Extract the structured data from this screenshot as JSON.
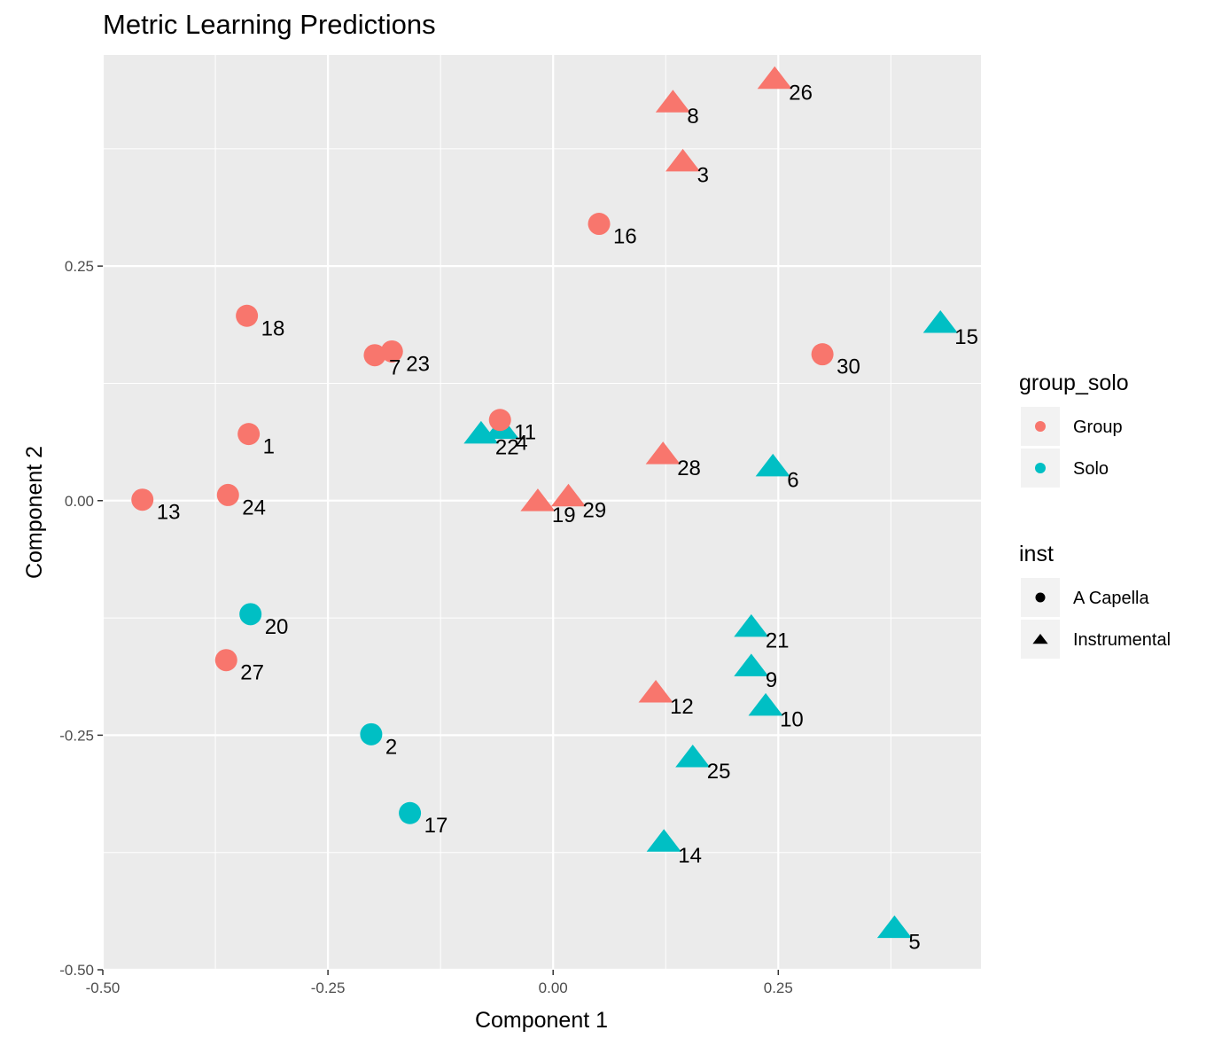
{
  "chart_data": {
    "type": "scatter",
    "title": "Metric Learning Predictions",
    "xlabel": "Component 1",
    "ylabel": "Component 2",
    "xlim": [
      -0.5,
      0.475
    ],
    "ylim": [
      -0.5,
      0.475
    ],
    "x_ticks": [
      -0.5,
      -0.25,
      0.0,
      0.25
    ],
    "x_tick_labels": [
      "-0.50",
      "-0.25",
      "0.00",
      "0.25"
    ],
    "y_ticks": [
      -0.5,
      -0.25,
      0.0,
      0.25
    ],
    "y_tick_labels": [
      "-0.50",
      "-0.25",
      "0.00",
      "0.25"
    ],
    "grid": true,
    "legend_position": "right",
    "colors": {
      "Group": "#F8766D",
      "Solo": "#00BFC4",
      "panel": "#EBEBEB",
      "grid": "#FFFFFF"
    },
    "legends": [
      {
        "title": "group_solo",
        "entries": [
          "Group",
          "Solo"
        ]
      },
      {
        "title": "inst",
        "entries": [
          "A Capella",
          "Instrumental"
        ]
      }
    ],
    "points": [
      {
        "label": "1",
        "x": -0.338,
        "y": 0.071,
        "group": "Group",
        "inst": "A Capella"
      },
      {
        "label": "2",
        "x": -0.202,
        "y": -0.249,
        "group": "Solo",
        "inst": "A Capella"
      },
      {
        "label": "3",
        "x": 0.144,
        "y": 0.36,
        "group": "Group",
        "inst": "Instrumental"
      },
      {
        "label": "4",
        "x": -0.057,
        "y": 0.075,
        "group": "Solo",
        "inst": "Instrumental"
      },
      {
        "label": "5",
        "x": 0.379,
        "y": -0.457,
        "group": "Solo",
        "inst": "Instrumental"
      },
      {
        "label": "6",
        "x": 0.244,
        "y": 0.035,
        "group": "Solo",
        "inst": "Instrumental"
      },
      {
        "label": "7",
        "x": -0.198,
        "y": 0.155,
        "group": "Group",
        "inst": "A Capella"
      },
      {
        "label": "8",
        "x": 0.133,
        "y": 0.423,
        "group": "Group",
        "inst": "Instrumental"
      },
      {
        "label": "9",
        "x": 0.22,
        "y": -0.178,
        "group": "Solo",
        "inst": "Instrumental"
      },
      {
        "label": "10",
        "x": 0.236,
        "y": -0.22,
        "group": "Solo",
        "inst": "Instrumental"
      },
      {
        "label": "11",
        "x": -0.059,
        "y": 0.086,
        "group": "Group",
        "inst": "A Capella"
      },
      {
        "label": "12",
        "x": 0.114,
        "y": -0.206,
        "group": "Group",
        "inst": "Instrumental"
      },
      {
        "label": "13",
        "x": -0.456,
        "y": 0.001,
        "group": "Group",
        "inst": "A Capella"
      },
      {
        "label": "14",
        "x": 0.123,
        "y": -0.365,
        "group": "Solo",
        "inst": "Instrumental"
      },
      {
        "label": "15",
        "x": 0.43,
        "y": 0.188,
        "group": "Solo",
        "inst": "Instrumental"
      },
      {
        "label": "16",
        "x": 0.051,
        "y": 0.295,
        "group": "Group",
        "inst": "A Capella"
      },
      {
        "label": "17",
        "x": -0.159,
        "y": -0.333,
        "group": "Solo",
        "inst": "A Capella"
      },
      {
        "label": "18",
        "x": -0.34,
        "y": 0.197,
        "group": "Group",
        "inst": "A Capella"
      },
      {
        "label": "19",
        "x": -0.017,
        "y": -0.002,
        "group": "Group",
        "inst": "Instrumental"
      },
      {
        "label": "20",
        "x": -0.336,
        "y": -0.121,
        "group": "Solo",
        "inst": "A Capella"
      },
      {
        "label": "21",
        "x": 0.22,
        "y": -0.136,
        "group": "Solo",
        "inst": "Instrumental"
      },
      {
        "label": "22",
        "x": -0.08,
        "y": 0.07,
        "group": "Solo",
        "inst": "Instrumental"
      },
      {
        "label": "23",
        "x": -0.179,
        "y": 0.159,
        "group": "Group",
        "inst": "A Capella"
      },
      {
        "label": "24",
        "x": -0.361,
        "y": 0.006,
        "group": "Group",
        "inst": "A Capella"
      },
      {
        "label": "25",
        "x": 0.155,
        "y": -0.275,
        "group": "Solo",
        "inst": "Instrumental"
      },
      {
        "label": "26",
        "x": 0.246,
        "y": 0.448,
        "group": "Group",
        "inst": "Instrumental"
      },
      {
        "label": "27",
        "x": -0.363,
        "y": -0.17,
        "group": "Group",
        "inst": "A Capella"
      },
      {
        "label": "28",
        "x": 0.122,
        "y": 0.048,
        "group": "Group",
        "inst": "Instrumental"
      },
      {
        "label": "29",
        "x": 0.017,
        "y": 0.003,
        "group": "Group",
        "inst": "Instrumental"
      },
      {
        "label": "30",
        "x": 0.299,
        "y": 0.156,
        "group": "Group",
        "inst": "A Capella"
      }
    ]
  }
}
